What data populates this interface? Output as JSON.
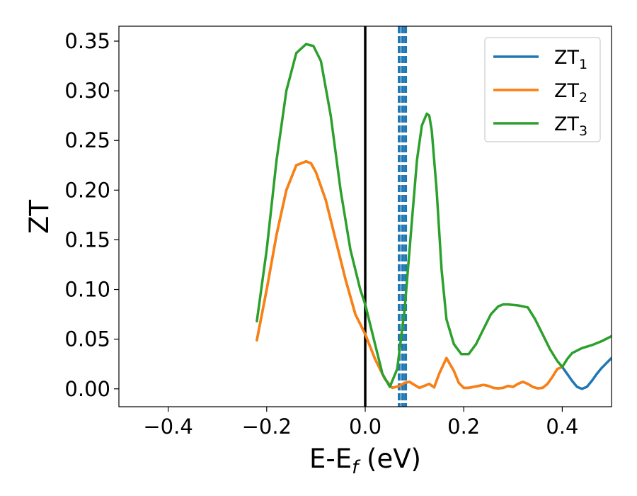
{
  "chart_data": {
    "type": "line",
    "xlabel": "E-E",
    "xlabel_sub": "f",
    "xlabel_suffix": " (eV)",
    "ylabel": "ZT",
    "xlim": [
      -0.5,
      0.5
    ],
    "ylim": [
      -0.018,
      0.365
    ],
    "xticks": [
      -0.4,
      -0.2,
      0.0,
      0.2,
      0.4
    ],
    "xtick_labels": [
      "−0.4",
      "−0.2",
      "0.0",
      "0.2",
      "0.4"
    ],
    "yticks": [
      0.0,
      0.05,
      0.1,
      0.15,
      0.2,
      0.25,
      0.3,
      0.35
    ],
    "ytick_labels": [
      "0.00",
      "0.05",
      "0.10",
      "0.15",
      "0.20",
      "0.25",
      "0.30",
      "0.35"
    ],
    "legend_position": "top-right",
    "series": [
      {
        "name": "ZT",
        "sub": "1",
        "color": "#1f77b4",
        "x": [
          -0.22,
          -0.2,
          -0.18,
          -0.16,
          -0.14,
          -0.12,
          -0.11,
          -0.1,
          -0.08,
          -0.06,
          -0.04,
          -0.02,
          0.0,
          0.02,
          0.04,
          0.055,
          0.07,
          0.08,
          0.09,
          0.1,
          0.11,
          0.12,
          0.13,
          0.14,
          0.15,
          0.165,
          0.18,
          0.19,
          0.2,
          0.21,
          0.22,
          0.23,
          0.24,
          0.25,
          0.26,
          0.27,
          0.28,
          0.29,
          0.3,
          0.31,
          0.32,
          0.33,
          0.34,
          0.35,
          0.36,
          0.37,
          0.38,
          0.39,
          0.4,
          0.41,
          0.42,
          0.43,
          0.44,
          0.45,
          0.46,
          0.47,
          0.48,
          0.49,
          0.5
        ],
        "y": [
          0.049,
          0.1,
          0.155,
          0.2,
          0.225,
          0.229,
          0.227,
          0.218,
          0.19,
          0.15,
          0.11,
          0.075,
          0.055,
          0.03,
          0.01,
          0.001,
          0.003,
          0.006,
          0.007,
          0.004,
          0.001,
          0.003,
          0.005,
          0.0015,
          0.015,
          0.031,
          0.018,
          0.006,
          0.001,
          0.001,
          0.002,
          0.003,
          0.004,
          0.003,
          0.001,
          0.0005,
          0.001,
          0.003,
          0.002,
          0.005,
          0.007,
          0.005,
          0.002,
          0.0005,
          0.001,
          0.005,
          0.012,
          0.02,
          0.022,
          0.015,
          0.008,
          0.002,
          0.0,
          0.002,
          0.008,
          0.015,
          0.021,
          0.026,
          0.031
        ]
      },
      {
        "name": "ZT",
        "sub": "2",
        "color": "#ff7f0e",
        "x": [
          -0.22,
          -0.2,
          -0.18,
          -0.16,
          -0.14,
          -0.12,
          -0.11,
          -0.1,
          -0.08,
          -0.06,
          -0.04,
          -0.02,
          0.0,
          0.02,
          0.04,
          0.055,
          0.07,
          0.08,
          0.09,
          0.1,
          0.11,
          0.12,
          0.13,
          0.14,
          0.15,
          0.165,
          0.18,
          0.19,
          0.2,
          0.21,
          0.22,
          0.23,
          0.24,
          0.25,
          0.26,
          0.27,
          0.28,
          0.29,
          0.3,
          0.31,
          0.32,
          0.33,
          0.34,
          0.35,
          0.36,
          0.37,
          0.38,
          0.39,
          0.4
        ],
        "y": [
          0.049,
          0.1,
          0.155,
          0.2,
          0.225,
          0.229,
          0.227,
          0.218,
          0.19,
          0.15,
          0.11,
          0.075,
          0.055,
          0.03,
          0.01,
          0.001,
          0.003,
          0.006,
          0.007,
          0.004,
          0.001,
          0.003,
          0.005,
          0.0015,
          0.015,
          0.031,
          0.018,
          0.006,
          0.001,
          0.001,
          0.002,
          0.003,
          0.004,
          0.003,
          0.001,
          0.0005,
          0.001,
          0.003,
          0.002,
          0.005,
          0.007,
          0.005,
          0.002,
          0.0005,
          0.001,
          0.005,
          0.012,
          0.02,
          0.022
        ]
      },
      {
        "name": "ZT",
        "sub": "3",
        "color": "#2ca02c",
        "x": [
          -0.22,
          -0.2,
          -0.18,
          -0.16,
          -0.14,
          -0.12,
          -0.105,
          -0.09,
          -0.07,
          -0.05,
          -0.03,
          -0.01,
          0.0,
          0.02,
          0.035,
          0.05,
          0.065,
          0.08,
          0.095,
          0.105,
          0.115,
          0.125,
          0.13,
          0.135,
          0.145,
          0.155,
          0.165,
          0.18,
          0.195,
          0.21,
          0.225,
          0.24,
          0.255,
          0.27,
          0.28,
          0.29,
          0.31,
          0.33,
          0.345,
          0.36,
          0.375,
          0.39,
          0.4,
          0.41,
          0.42,
          0.44,
          0.46,
          0.48,
          0.5
        ],
        "y": [
          0.068,
          0.14,
          0.23,
          0.3,
          0.338,
          0.347,
          0.345,
          0.33,
          0.275,
          0.2,
          0.14,
          0.1,
          0.085,
          0.045,
          0.015,
          0.002,
          0.02,
          0.08,
          0.17,
          0.23,
          0.265,
          0.277,
          0.275,
          0.26,
          0.2,
          0.12,
          0.07,
          0.045,
          0.035,
          0.035,
          0.045,
          0.06,
          0.075,
          0.083,
          0.085,
          0.085,
          0.084,
          0.082,
          0.07,
          0.055,
          0.04,
          0.028,
          0.022,
          0.03,
          0.036,
          0.041,
          0.044,
          0.048,
          0.053
        ]
      }
    ],
    "vlines": [
      {
        "x": 0.0,
        "color": "#000000",
        "style": "solid"
      },
      {
        "x": 0.069,
        "color": "#1f77b4",
        "style": "dashed"
      },
      {
        "x": 0.076,
        "color": "#1f77b4",
        "style": "dashed"
      },
      {
        "x": 0.082,
        "color": "#1f77b4",
        "style": "dashed"
      }
    ]
  }
}
